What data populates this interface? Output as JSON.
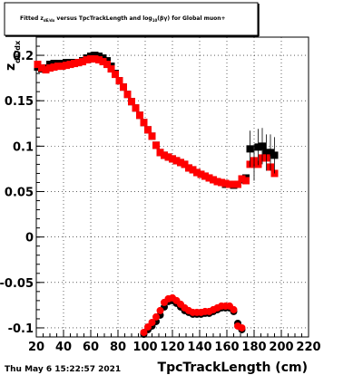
{
  "window": {
    "date_stamp": "Thu May  6 15:22:57 2021"
  },
  "chart_data": {
    "type": "scatter",
    "title": {
      "prefix": "Fitted  z",
      "sub1": "dE/dx",
      "middle": "  versus TpcTrackLength and log",
      "sub2": "10",
      "suffix": "(βγ) for Global muon+"
    },
    "xlabel": "TpcTrackLength (cm)",
    "ylabel_main": "z",
    "ylabel_sub": "dE/dx",
    "xlim": [
      20,
      220
    ],
    "ylim": [
      -0.11,
      0.22
    ],
    "xticks": [
      20,
      40,
      60,
      80,
      100,
      120,
      140,
      160,
      180,
      200,
      220
    ],
    "yticks": [
      {
        "value": -0.1,
        "label": "-0.1"
      },
      {
        "value": -0.05,
        "label": "-0.05"
      },
      {
        "value": 0,
        "label": "0"
      },
      {
        "value": 0.05,
        "label": "0.05"
      },
      {
        "value": 0.1,
        "label": "0.1"
      },
      {
        "value": 0.15,
        "label": "0.15"
      },
      {
        "value": 0.2,
        "label": "0.2"
      }
    ],
    "grid": true,
    "colors": {
      "series_a": "#000000",
      "series_b": "#ff0000"
    },
    "series": [
      {
        "marker": "square",
        "color": "#000000",
        "points": [
          [
            21,
            0.187
          ],
          [
            24,
            0.185
          ],
          [
            27,
            0.186
          ],
          [
            30,
            0.19
          ],
          [
            33,
            0.191
          ],
          [
            36,
            0.191
          ],
          [
            39,
            0.191
          ],
          [
            42,
            0.192
          ],
          [
            45,
            0.192
          ],
          [
            48,
            0.192
          ],
          [
            51,
            0.192
          ],
          [
            54,
            0.194
          ],
          [
            57,
            0.197
          ],
          [
            60,
            0.199
          ],
          [
            63,
            0.2
          ],
          [
            66,
            0.199
          ],
          [
            69,
            0.197
          ],
          [
            72,
            0.194
          ],
          [
            75,
            0.188
          ],
          [
            78,
            0.18
          ],
          [
            81,
            0.172
          ],
          [
            84,
            0.165
          ],
          [
            87,
            0.157
          ],
          [
            90,
            0.149
          ],
          [
            93,
            0.142
          ],
          [
            96,
            0.134
          ],
          [
            99,
            0.126
          ],
          [
            102,
            0.118
          ],
          [
            105,
            0.111
          ],
          [
            108,
            0.101
          ],
          [
            111,
            0.093
          ],
          [
            114,
            0.09
          ],
          [
            117,
            0.088
          ],
          [
            120,
            0.086
          ],
          [
            123,
            0.084
          ],
          [
            126,
            0.082
          ],
          [
            129,
            0.08
          ],
          [
            132,
            0.076
          ],
          [
            135,
            0.074
          ],
          [
            138,
            0.071
          ],
          [
            141,
            0.069
          ],
          [
            144,
            0.067
          ],
          [
            147,
            0.065
          ],
          [
            150,
            0.063
          ],
          [
            153,
            0.061
          ],
          [
            156,
            0.06
          ],
          [
            159,
            0.058
          ],
          [
            162,
            0.058
          ],
          [
            165,
            0.057
          ],
          [
            168,
            0.058
          ],
          [
            171,
            0.063
          ],
          [
            174,
            0.065
          ],
          [
            177,
            0.097
          ],
          [
            180,
            0.082
          ],
          [
            183,
            0.099
          ],
          [
            186,
            0.1
          ],
          [
            189,
            0.093
          ],
          [
            192,
            0.093
          ],
          [
            195,
            0.09
          ]
        ],
        "lower_points": [
          [
            99,
            -0.107
          ],
          [
            102,
            -0.102
          ],
          [
            105,
            -0.098
          ],
          [
            108,
            -0.093
          ],
          [
            111,
            -0.086
          ],
          [
            114,
            -0.077
          ],
          [
            117,
            -0.071
          ],
          [
            120,
            -0.07
          ],
          [
            123,
            -0.073
          ],
          [
            126,
            -0.077
          ],
          [
            129,
            -0.081
          ],
          [
            132,
            -0.083
          ],
          [
            135,
            -0.085
          ],
          [
            138,
            -0.085
          ],
          [
            141,
            -0.085
          ],
          [
            144,
            -0.084
          ],
          [
            147,
            -0.084
          ],
          [
            150,
            -0.082
          ],
          [
            153,
            -0.08
          ],
          [
            156,
            -0.078
          ],
          [
            159,
            -0.078
          ],
          [
            162,
            -0.078
          ],
          [
            165,
            -0.082
          ],
          [
            168,
            -0.095
          ],
          [
            171,
            -0.102
          ]
        ]
      },
      {
        "marker": "square",
        "color": "#ff0000",
        "points": [
          [
            21,
            0.19
          ],
          [
            24,
            0.186
          ],
          [
            27,
            0.184
          ],
          [
            30,
            0.186
          ],
          [
            33,
            0.187
          ],
          [
            36,
            0.188
          ],
          [
            39,
            0.188
          ],
          [
            42,
            0.189
          ],
          [
            45,
            0.19
          ],
          [
            48,
            0.191
          ],
          [
            51,
            0.192
          ],
          [
            54,
            0.193
          ],
          [
            57,
            0.195
          ],
          [
            60,
            0.196
          ],
          [
            63,
            0.196
          ],
          [
            66,
            0.195
          ],
          [
            69,
            0.193
          ],
          [
            72,
            0.19
          ],
          [
            75,
            0.185
          ],
          [
            78,
            0.179
          ],
          [
            81,
            0.172
          ],
          [
            84,
            0.165
          ],
          [
            87,
            0.157
          ],
          [
            90,
            0.149
          ],
          [
            93,
            0.142
          ],
          [
            96,
            0.134
          ],
          [
            99,
            0.126
          ],
          [
            102,
            0.118
          ],
          [
            105,
            0.111
          ],
          [
            108,
            0.101
          ],
          [
            111,
            0.093
          ],
          [
            114,
            0.09
          ],
          [
            117,
            0.088
          ],
          [
            120,
            0.086
          ],
          [
            123,
            0.084
          ],
          [
            126,
            0.082
          ],
          [
            129,
            0.08
          ],
          [
            132,
            0.076
          ],
          [
            135,
            0.074
          ],
          [
            138,
            0.071
          ],
          [
            141,
            0.069
          ],
          [
            144,
            0.067
          ],
          [
            147,
            0.065
          ],
          [
            150,
            0.063
          ],
          [
            153,
            0.061
          ],
          [
            156,
            0.06
          ],
          [
            159,
            0.059
          ],
          [
            162,
            0.058
          ],
          [
            165,
            0.058
          ],
          [
            168,
            0.058
          ],
          [
            171,
            0.064
          ],
          [
            174,
            0.062
          ],
          [
            177,
            0.08
          ],
          [
            180,
            0.084
          ],
          [
            183,
            0.08
          ],
          [
            186,
            0.087
          ],
          [
            189,
            0.087
          ],
          [
            192,
            0.077
          ],
          [
            195,
            0.07
          ]
        ],
        "lower_points": [
          [
            99,
            -0.105
          ],
          [
            102,
            -0.099
          ],
          [
            105,
            -0.094
          ],
          [
            108,
            -0.088
          ],
          [
            111,
            -0.081
          ],
          [
            114,
            -0.072
          ],
          [
            117,
            -0.068
          ],
          [
            120,
            -0.067
          ],
          [
            123,
            -0.07
          ],
          [
            126,
            -0.074
          ],
          [
            129,
            -0.078
          ],
          [
            132,
            -0.081
          ],
          [
            135,
            -0.083
          ],
          [
            138,
            -0.083
          ],
          [
            141,
            -0.083
          ],
          [
            144,
            -0.082
          ],
          [
            147,
            -0.082
          ],
          [
            150,
            -0.08
          ],
          [
            153,
            -0.078
          ],
          [
            156,
            -0.076
          ],
          [
            159,
            -0.076
          ],
          [
            162,
            -0.076
          ],
          [
            165,
            -0.08
          ],
          [
            168,
            -0.098
          ],
          [
            171,
            -0.1
          ]
        ]
      }
    ]
  }
}
